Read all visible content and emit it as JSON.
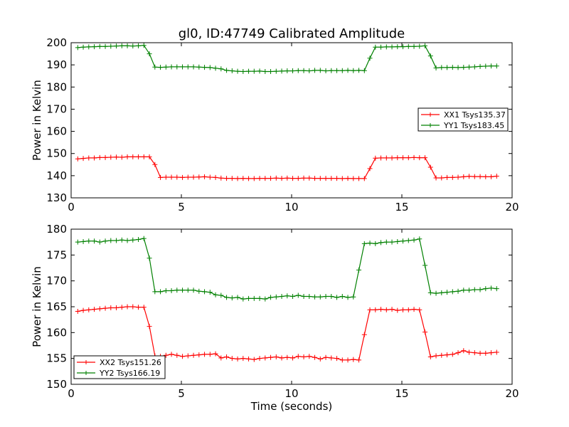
{
  "title": "gl0, ID:47749 Calibrated Amplitude",
  "colors": {
    "xx": "#ff0000",
    "yy": "#008000"
  },
  "chart_data": [
    {
      "type": "line",
      "xlabel": "",
      "ylabel": "Power in Kelvin",
      "xlim": [
        0,
        20
      ],
      "ylim": [
        130,
        200
      ],
      "xticks": [
        "0",
        "5",
        "10",
        "15",
        "20"
      ],
      "yticks": [
        "130",
        "140",
        "150",
        "160",
        "170",
        "180",
        "190",
        "200"
      ],
      "legend_position": "center-right",
      "series": [
        {
          "name": "XX1 Tsys135.37",
          "color": "#ff0000",
          "x": [
            0.3,
            0.55,
            0.8,
            1.05,
            1.3,
            1.55,
            1.8,
            2.05,
            2.3,
            2.55,
            2.8,
            3.05,
            3.3,
            3.55,
            3.8,
            4.05,
            4.3,
            4.55,
            4.8,
            5.05,
            5.3,
            5.55,
            5.8,
            6.05,
            6.3,
            6.55,
            6.8,
            7.05,
            7.3,
            7.55,
            7.8,
            8.05,
            8.3,
            8.55,
            8.8,
            9.05,
            9.3,
            9.55,
            9.8,
            10.05,
            10.3,
            10.55,
            10.8,
            11.05,
            11.3,
            11.55,
            11.8,
            12.05,
            12.3,
            12.55,
            12.8,
            13.05,
            13.3,
            13.55,
            13.8,
            14.05,
            14.3,
            14.55,
            14.8,
            15.05,
            15.3,
            15.55,
            15.8,
            16.05,
            16.3,
            16.55,
            16.8,
            17.05,
            17.3,
            17.55,
            17.8,
            18.05,
            18.3,
            18.55,
            18.8,
            19.05,
            19.3
          ],
          "y": [
            147.6,
            147.8,
            148.0,
            148.0,
            148.2,
            148.2,
            148.3,
            148.4,
            148.3,
            148.5,
            148.5,
            148.5,
            148.5,
            148.5,
            145.0,
            139.2,
            139.3,
            139.3,
            139.3,
            139.2,
            139.3,
            139.3,
            139.4,
            139.5,
            139.3,
            139.2,
            138.9,
            138.8,
            138.8,
            138.7,
            138.8,
            138.7,
            138.7,
            138.8,
            138.8,
            138.8,
            138.9,
            138.8,
            138.9,
            138.8,
            138.8,
            138.9,
            138.9,
            138.8,
            138.8,
            138.8,
            138.8,
            138.8,
            138.7,
            138.8,
            138.7,
            138.7,
            138.7,
            143.2,
            147.9,
            148.0,
            148.0,
            148.0,
            148.1,
            148.1,
            148.1,
            148.2,
            148.1,
            148.1,
            143.8,
            139.0,
            139.0,
            139.2,
            139.2,
            139.3,
            139.5,
            139.7,
            139.6,
            139.6,
            139.5,
            139.5,
            139.8
          ]
        },
        {
          "name": "YY1 Tsys183.45",
          "color": "#008000",
          "x": [
            0.3,
            0.55,
            0.8,
            1.05,
            1.3,
            1.55,
            1.8,
            2.05,
            2.3,
            2.55,
            2.8,
            3.05,
            3.3,
            3.55,
            3.8,
            4.05,
            4.3,
            4.55,
            4.8,
            5.05,
            5.3,
            5.55,
            5.8,
            6.05,
            6.3,
            6.55,
            6.8,
            7.05,
            7.3,
            7.55,
            7.8,
            8.05,
            8.3,
            8.55,
            8.8,
            9.05,
            9.3,
            9.55,
            9.8,
            10.05,
            10.3,
            10.55,
            10.8,
            11.05,
            11.3,
            11.55,
            11.8,
            12.05,
            12.3,
            12.55,
            12.8,
            13.05,
            13.3,
            13.55,
            13.8,
            14.05,
            14.3,
            14.55,
            14.8,
            15.05,
            15.3,
            15.55,
            15.8,
            16.05,
            16.3,
            16.55,
            16.8,
            17.05,
            17.3,
            17.55,
            17.8,
            18.05,
            18.3,
            18.55,
            18.8,
            19.05,
            19.3
          ],
          "y": [
            197.8,
            198.0,
            198.1,
            198.2,
            198.3,
            198.3,
            198.4,
            198.5,
            198.6,
            198.6,
            198.5,
            198.6,
            198.8,
            195.0,
            189.0,
            188.9,
            189.0,
            189.1,
            189.1,
            189.1,
            189.1,
            189.1,
            189.0,
            188.9,
            188.8,
            188.5,
            188.2,
            187.5,
            187.3,
            187.1,
            187.0,
            187.1,
            187.1,
            187.2,
            187.0,
            187.0,
            187.1,
            187.2,
            187.3,
            187.3,
            187.4,
            187.4,
            187.3,
            187.5,
            187.5,
            187.3,
            187.4,
            187.4,
            187.4,
            187.5,
            187.4,
            187.5,
            187.4,
            193.0,
            198.0,
            198.0,
            198.1,
            198.1,
            198.2,
            198.2,
            198.3,
            198.3,
            198.4,
            198.6,
            194.0,
            188.6,
            188.8,
            188.8,
            188.9,
            188.8,
            188.9,
            189.0,
            189.1,
            189.3,
            189.4,
            189.5,
            189.5
          ]
        }
      ]
    },
    {
      "type": "line",
      "xlabel": "Time (seconds)",
      "ylabel": "Power in Kelvin",
      "xlim": [
        0,
        20
      ],
      "ylim": [
        150,
        180
      ],
      "xticks": [
        "0",
        "5",
        "10",
        "15",
        "20"
      ],
      "yticks": [
        "150",
        "155",
        "160",
        "165",
        "170",
        "175",
        "180"
      ],
      "legend_position": "lower-left",
      "series": [
        {
          "name": "XX2 Tsys151.26",
          "color": "#ff0000",
          "x": [
            0.3,
            0.55,
            0.8,
            1.05,
            1.3,
            1.55,
            1.8,
            2.05,
            2.3,
            2.55,
            2.8,
            3.05,
            3.3,
            3.55,
            3.8,
            4.05,
            4.3,
            4.55,
            4.8,
            5.05,
            5.3,
            5.55,
            5.8,
            6.05,
            6.3,
            6.55,
            6.8,
            7.05,
            7.3,
            7.55,
            7.8,
            8.05,
            8.3,
            8.55,
            8.8,
            9.05,
            9.3,
            9.55,
            9.8,
            10.05,
            10.3,
            10.55,
            10.8,
            11.05,
            11.3,
            11.55,
            11.8,
            12.05,
            12.3,
            12.55,
            12.8,
            13.05,
            13.3,
            13.55,
            13.8,
            14.05,
            14.3,
            14.55,
            14.8,
            15.05,
            15.3,
            15.55,
            15.8,
            16.05,
            16.3,
            16.55,
            16.8,
            17.05,
            17.3,
            17.55,
            17.8,
            18.05,
            18.3,
            18.55,
            18.8,
            19.05,
            19.3
          ],
          "y": [
            164.1,
            164.3,
            164.4,
            164.5,
            164.6,
            164.7,
            164.8,
            164.8,
            164.9,
            165.0,
            165.0,
            164.9,
            164.9,
            161.2,
            155.5,
            155.4,
            155.6,
            155.8,
            155.6,
            155.4,
            155.5,
            155.6,
            155.7,
            155.8,
            155.8,
            155.9,
            155.1,
            155.3,
            155.0,
            154.9,
            155.0,
            154.9,
            154.8,
            155.0,
            155.1,
            155.2,
            155.3,
            155.1,
            155.2,
            155.1,
            155.4,
            155.3,
            155.4,
            155.2,
            154.9,
            155.2,
            155.1,
            155.0,
            154.7,
            154.7,
            154.8,
            154.7,
            159.6,
            164.4,
            164.4,
            164.5,
            164.4,
            164.5,
            164.3,
            164.4,
            164.4,
            164.5,
            164.4,
            160.1,
            155.3,
            155.5,
            155.6,
            155.7,
            155.8,
            156.1,
            156.5,
            156.2,
            156.1,
            156.0,
            156.0,
            156.1,
            156.2
          ]
        },
        {
          "name": "YY2 Tsys166.19",
          "color": "#008000",
          "x": [
            0.3,
            0.55,
            0.8,
            1.05,
            1.3,
            1.55,
            1.8,
            2.05,
            2.3,
            2.55,
            2.8,
            3.05,
            3.3,
            3.55,
            3.8,
            4.05,
            4.3,
            4.55,
            4.8,
            5.05,
            5.3,
            5.55,
            5.8,
            6.05,
            6.3,
            6.55,
            6.8,
            7.05,
            7.3,
            7.55,
            7.8,
            8.05,
            8.3,
            8.55,
            8.8,
            9.05,
            9.3,
            9.55,
            9.8,
            10.05,
            10.3,
            10.55,
            10.8,
            11.05,
            11.3,
            11.55,
            11.8,
            12.05,
            12.3,
            12.55,
            12.8,
            13.05,
            13.3,
            13.55,
            13.8,
            14.05,
            14.3,
            14.55,
            14.8,
            15.05,
            15.3,
            15.55,
            15.8,
            16.05,
            16.3,
            16.55,
            16.8,
            17.05,
            17.3,
            17.55,
            17.8,
            18.05,
            18.3,
            18.55,
            18.8,
            19.05,
            19.3
          ],
          "y": [
            177.5,
            177.6,
            177.7,
            177.7,
            177.5,
            177.7,
            177.8,
            177.8,
            177.9,
            177.8,
            177.9,
            178.0,
            178.2,
            174.4,
            167.9,
            167.9,
            168.1,
            168.1,
            168.2,
            168.2,
            168.2,
            168.2,
            168.0,
            167.9,
            167.8,
            167.3,
            167.2,
            166.8,
            166.7,
            166.8,
            166.5,
            166.6,
            166.6,
            166.6,
            166.5,
            166.8,
            166.9,
            167.0,
            167.1,
            167.0,
            167.2,
            167.0,
            167.0,
            166.9,
            166.9,
            167.0,
            167.0,
            166.8,
            167.0,
            166.8,
            166.9,
            172.1,
            177.2,
            177.3,
            177.2,
            177.4,
            177.5,
            177.5,
            177.6,
            177.7,
            177.8,
            177.9,
            178.1,
            173.0,
            167.7,
            167.6,
            167.7,
            167.8,
            167.9,
            168.0,
            168.2,
            168.2,
            168.3,
            168.3,
            168.5,
            168.6,
            168.5
          ]
        }
      ]
    }
  ]
}
